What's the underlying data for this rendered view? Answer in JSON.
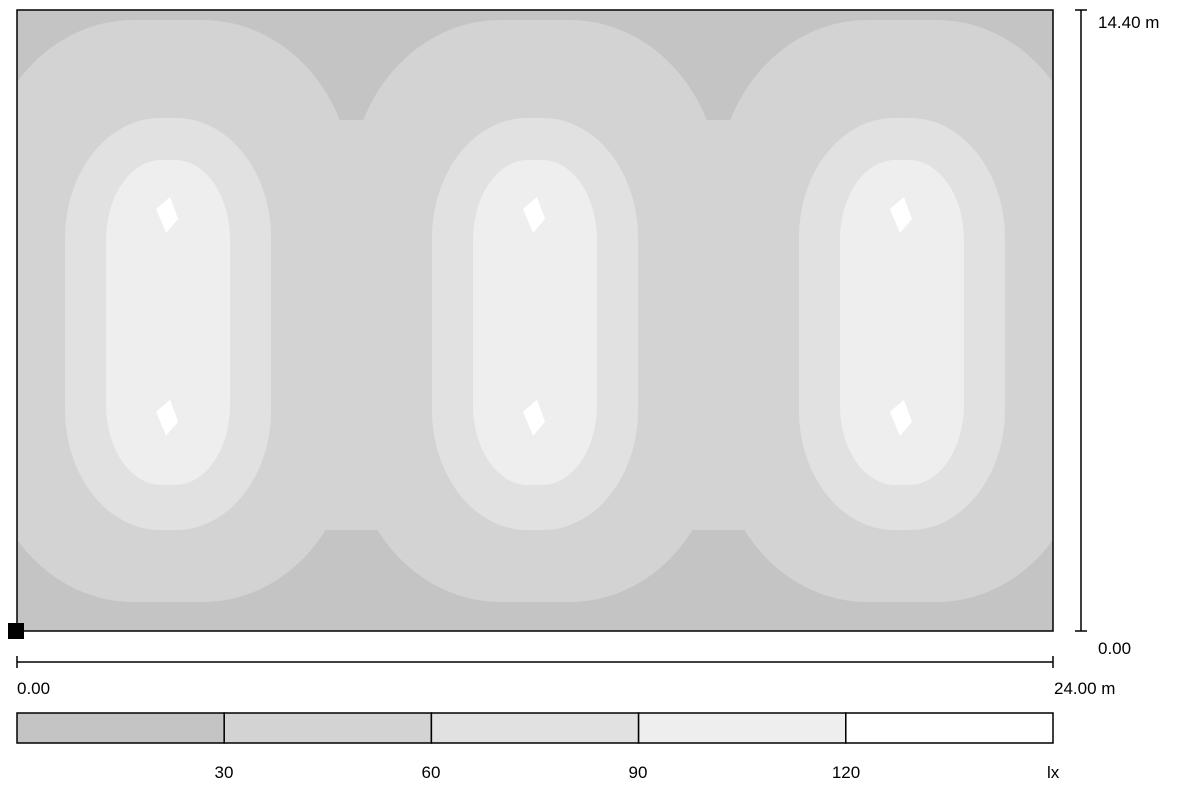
{
  "chart_data": {
    "type": "heatmap",
    "x_range": [
      0,
      24
    ],
    "y_range": [
      0,
      14.4
    ],
    "x_axis": {
      "min_label": "0.00",
      "max_label": "24.00 m"
    },
    "y_axis": {
      "min_label": "0.00",
      "max_label": "14.40 m"
    },
    "legend": {
      "unit": "lx",
      "ticks": [
        "30",
        "60",
        "90",
        "120"
      ],
      "bins": [
        {
          "from": 0,
          "to": 30,
          "color": "#c4c4c4"
        },
        {
          "from": 30,
          "to": 60,
          "color": "#d3d3d3"
        },
        {
          "from": 60,
          "to": 90,
          "color": "#e1e1e1"
        },
        {
          "from": 90,
          "to": 120,
          "color": "#eeeeee"
        },
        {
          "from": 120,
          "to": 150,
          "color": "#ffffff"
        }
      ]
    },
    "luminaires_x_m": [
      3.5,
      12,
      20.5
    ],
    "hotspots_y_m": [
      4.9,
      9.6
    ],
    "outer_boundary": "bottom-left"
  }
}
